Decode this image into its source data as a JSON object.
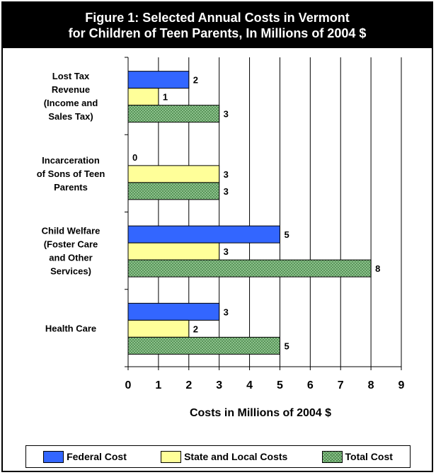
{
  "chart_data": {
    "type": "bar",
    "orientation": "horizontal",
    "title": "Figure 1: Selected Annual Costs in Vermont",
    "subtitle": "for Children of Teen Parents, In Millions of 2004 $",
    "xlabel": "Costs in Millions of 2004 $",
    "ylabel": "",
    "xlim": [
      0,
      9
    ],
    "xticks": [
      "0",
      "1",
      "2",
      "3",
      "4",
      "5",
      "6",
      "7",
      "8",
      "9"
    ],
    "categories": [
      "Lost Tax Revenue (Income and Sales Tax)",
      "Incarceration of Sons of Teen Parents",
      "Child Welfare (Foster Care and Other Services)",
      "Health Care"
    ],
    "category_lines": [
      [
        "Lost Tax",
        "Revenue",
        "(Income and",
        "Sales Tax)"
      ],
      [
        "Incarceration",
        "of Sons of Teen",
        "Parents"
      ],
      [
        "Child Welfare",
        "(Foster Care",
        "and Other",
        "Services)"
      ],
      [
        "Health Care"
      ]
    ],
    "series": [
      {
        "name": "Federal Cost",
        "values": [
          2,
          0,
          5,
          3
        ],
        "color": "#3366ff"
      },
      {
        "name": "State and Local Costs",
        "values": [
          1,
          3,
          3,
          2
        ],
        "color": "#ffff99"
      },
      {
        "name": "Total Cost",
        "values": [
          3,
          3,
          8,
          5
        ],
        "color": "#99cc99",
        "pattern": "crosshatch"
      }
    ],
    "data_labels": true,
    "grid": "vertical",
    "legend_position": "bottom"
  }
}
